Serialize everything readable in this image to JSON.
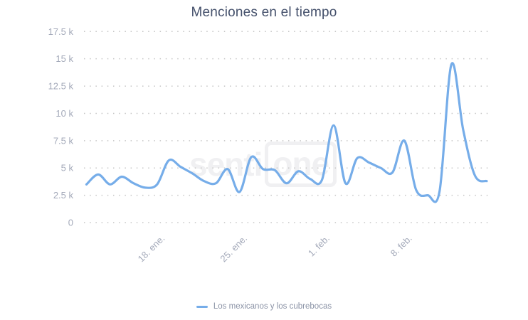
{
  "title": "Menciones en el tiempo",
  "watermark": {
    "prefix": "senti",
    "boxed": "one"
  },
  "legend": {
    "label": "Los mexicanos y los cubrebocas"
  },
  "colors": {
    "line": "#76ade9",
    "title_text": "#44506b",
    "axis_label": "#a3a9b9",
    "grid_dot": "#c6c6c6",
    "legend_text": "#8b93a6",
    "watermark": "#f0f0f2",
    "background": "#ffffff"
  },
  "chart_data": {
    "type": "line",
    "title": "Menciones en el tiempo",
    "xlabel": "",
    "ylabel": "",
    "ylim": [
      0,
      17500
    ],
    "grid": "dotted-horizontal",
    "legend_position": "bottom",
    "y_ticks": [
      0,
      2500,
      5000,
      7500,
      10000,
      12500,
      15000,
      17500
    ],
    "y_tick_labels": [
      "0",
      "2.5 k",
      "5 k",
      "7.5 k",
      "10 k",
      "12.5 k",
      "15 k",
      "17.5 k"
    ],
    "x_tick_labels": [
      "18. ene.",
      "25. ene.",
      "1. feb.",
      "8. feb."
    ],
    "x_tick_indices": [
      7,
      14,
      21,
      28
    ],
    "series": [
      {
        "name": "Los mexicanos y los cubrebocas",
        "dates": [
          "11 ene",
          "12 ene",
          "13 ene",
          "14 ene",
          "15 ene",
          "16 ene",
          "17 ene",
          "18 ene",
          "19 ene",
          "20 ene",
          "21 ene",
          "22 ene",
          "23 ene",
          "24 ene",
          "25 ene",
          "26 ene",
          "27 ene",
          "28 ene",
          "29 ene",
          "30 ene",
          "31 ene",
          "1 feb",
          "2 feb",
          "3 feb",
          "4 feb",
          "5 feb",
          "6 feb",
          "7 feb",
          "8 feb",
          "9 feb",
          "10 feb",
          "11 feb",
          "12 feb",
          "13 feb",
          "14 feb"
        ],
        "values": [
          3500,
          4400,
          3500,
          4200,
          3600,
          3200,
          3500,
          5700,
          5100,
          4500,
          3800,
          3600,
          4900,
          2800,
          6000,
          4900,
          4800,
          3600,
          4700,
          4000,
          3900,
          8900,
          3600,
          5900,
          5500,
          5000,
          4600,
          7500,
          3000,
          2500,
          2900,
          14500,
          8500,
          4300,
          3800
        ]
      }
    ]
  }
}
